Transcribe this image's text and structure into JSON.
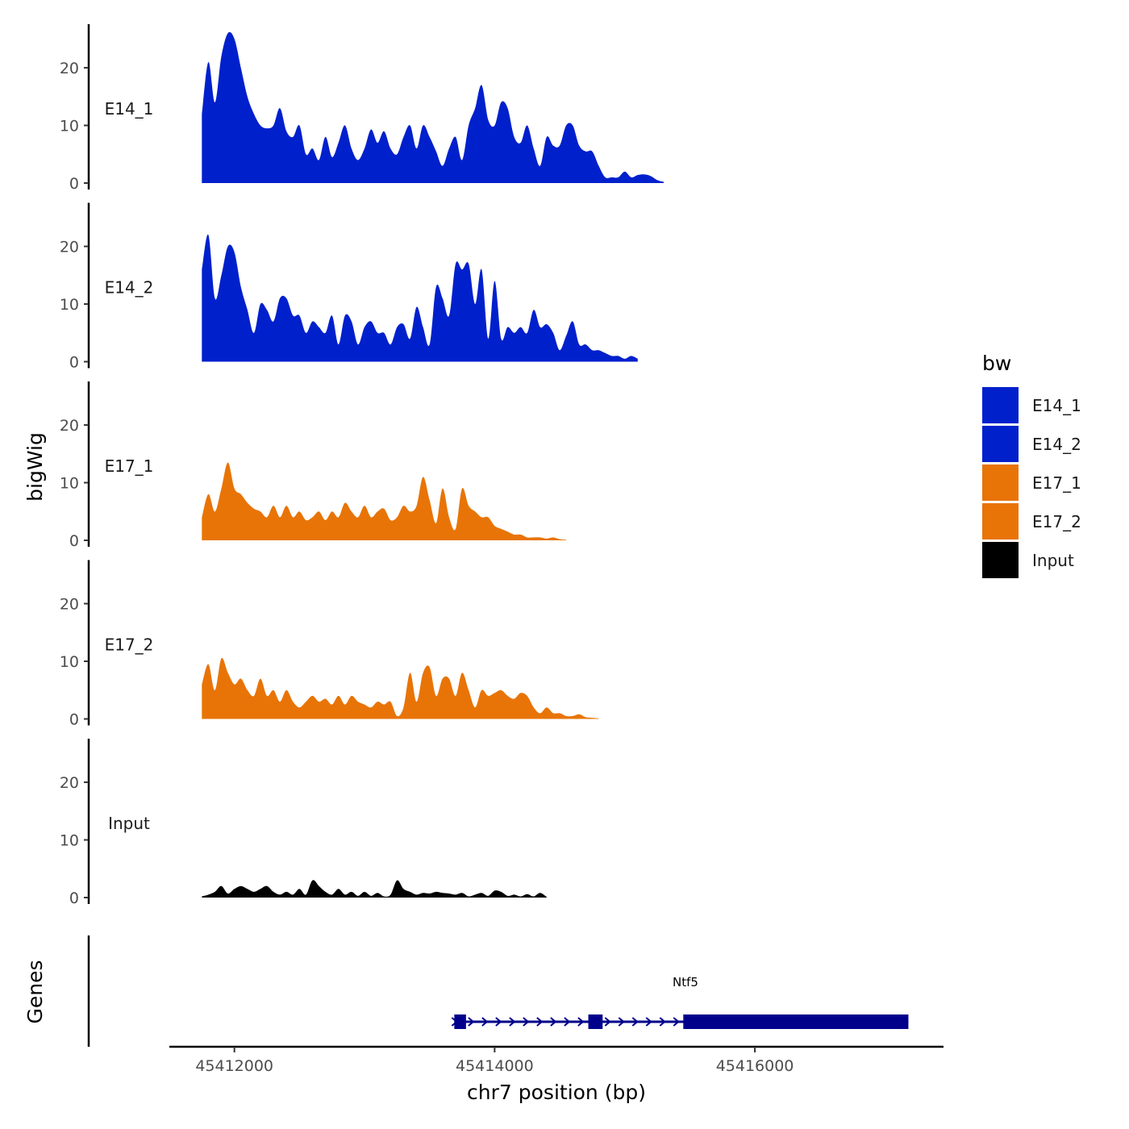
{
  "chart_data": {
    "type": "area",
    "xlabel": "chr7 position (bp)",
    "ylabel": "bigWig",
    "genes_label": "Genes",
    "xlim": [
      45411500,
      45417450
    ],
    "x_ticks": [
      45412000,
      45414000,
      45416000
    ],
    "x_tick_labels": [
      "45412000",
      "45414000",
      "45416000"
    ],
    "ylim": [
      0,
      27
    ],
    "y_ticks": [
      0,
      10,
      20
    ],
    "y_tick_labels": [
      "0",
      "10",
      "20"
    ],
    "legend": {
      "title": "bw",
      "position": "right",
      "entries": [
        {
          "label": "E14_1",
          "color": "#0020CC"
        },
        {
          "label": "E14_2",
          "color": "#0020CC"
        },
        {
          "label": "E17_1",
          "color": "#E87407"
        },
        {
          "label": "E17_2",
          "color": "#E87407"
        },
        {
          "label": "Input",
          "color": "#000000"
        }
      ]
    },
    "series": [
      {
        "name": "E14_1",
        "color": "#0020CC",
        "x_start": 45411750,
        "x_step": 50,
        "values": [
          12,
          21,
          14,
          22,
          26,
          25,
          20,
          15,
          12,
          10,
          9.5,
          10,
          13,
          9,
          8,
          10,
          5,
          6,
          4,
          8,
          4.5,
          7,
          10,
          6,
          4,
          6,
          9.3,
          7,
          9,
          6,
          5,
          8,
          10,
          6,
          10,
          8,
          5.5,
          3,
          6,
          8,
          4,
          10,
          13,
          17,
          11,
          10,
          14,
          13,
          8,
          7,
          10,
          6,
          3,
          8,
          6.5,
          6.5,
          10,
          10,
          6.5,
          5.5,
          5.5,
          3,
          1,
          1,
          1,
          2,
          1,
          1.4,
          1.5,
          1.2,
          0.5,
          0.2
        ]
      },
      {
        "name": "E14_2",
        "color": "#0020CC",
        "x_start": 45411750,
        "x_step": 50,
        "values": [
          16,
          22,
          11,
          15,
          20,
          19,
          13,
          9,
          5,
          10,
          9,
          7,
          11,
          11,
          8,
          8,
          5,
          7,
          6,
          5,
          8,
          3,
          8,
          7,
          3,
          6,
          7,
          5,
          5,
          3,
          6,
          6.5,
          4,
          9.5,
          6,
          3,
          13,
          11,
          8,
          17,
          16,
          17,
          10,
          16,
          4,
          14,
          4,
          6,
          5,
          6,
          5,
          9,
          6,
          6.5,
          5,
          2,
          4.5,
          7,
          3,
          3,
          2,
          2,
          1.5,
          1,
          1,
          0.5,
          1,
          0.5
        ]
      },
      {
        "name": "E17_1",
        "color": "#E87407",
        "x_start": 45411750,
        "x_step": 50,
        "values": [
          4,
          8,
          5,
          9,
          13.5,
          9,
          8,
          6.5,
          5.5,
          5,
          4,
          6,
          4,
          6,
          4,
          5,
          3.5,
          4,
          5,
          3.5,
          5,
          4,
          6.5,
          5,
          4,
          6,
          4,
          5,
          5.5,
          3.5,
          4,
          6,
          5,
          6,
          11,
          7,
          3,
          9,
          4,
          2,
          9,
          6,
          5,
          4,
          4,
          2.5,
          2,
          1.5,
          1,
          1,
          0.5,
          0.5,
          0.5,
          0.3,
          0.5,
          0.2,
          0.1
        ]
      },
      {
        "name": "E17_2",
        "color": "#E87407",
        "x_start": 45411750,
        "x_step": 50,
        "values": [
          6,
          9.5,
          5,
          10.5,
          8,
          6,
          7,
          5,
          4,
          7,
          4,
          5,
          3,
          5,
          3,
          2,
          3,
          4,
          3,
          3.5,
          2.5,
          4,
          2.5,
          4,
          3,
          2.5,
          2,
          3,
          2.5,
          3,
          0.5,
          2,
          8,
          3,
          8,
          9,
          4,
          7,
          7,
          4,
          8,
          5,
          2,
          5,
          4,
          4.5,
          5,
          4,
          3.5,
          4.5,
          4,
          2,
          1,
          2,
          1,
          1,
          0.5,
          0.5,
          0.8,
          0.3,
          0.2,
          0.1
        ]
      },
      {
        "name": "Input",
        "color": "#000000",
        "x_start": 45411750,
        "x_step": 50,
        "values": [
          0.2,
          0.5,
          1,
          2,
          0.7,
          1.5,
          2,
          1.5,
          1,
          1.5,
          2,
          1,
          0.5,
          1,
          0.5,
          1.5,
          0.5,
          3,
          2,
          1,
          0.5,
          1.5,
          0.5,
          1,
          0.3,
          1,
          0.3,
          0.8,
          0.2,
          0.5,
          3,
          1.5,
          1,
          0.5,
          0.8,
          0.7,
          1,
          0.8,
          0.7,
          0.5,
          0.8,
          0.2,
          0.5,
          0.8,
          0.3,
          1.2,
          1,
          0.3,
          0.5,
          0.2,
          0.6,
          0.2,
          0.8,
          0.1
        ]
      }
    ],
    "gene": {
      "name": "Ntf5",
      "strand": "+",
      "color": "#00008B",
      "start": 45413690,
      "end": 45417180,
      "exons": [
        [
          45413690,
          45413780
        ],
        [
          45414720,
          45414830
        ],
        [
          45415450,
          45417180
        ]
      ]
    }
  }
}
